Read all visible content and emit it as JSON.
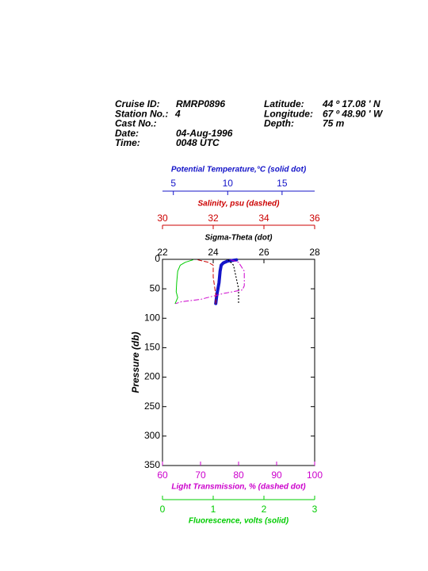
{
  "header": {
    "left": [
      {
        "label": "Cruise ID:",
        "value": "RMRP0896"
      },
      {
        "label": "Station No.:",
        "value": "4"
      },
      {
        "label": "Cast No.:"
      },
      {
        "label": "Date:",
        "value": "04-Aug-1996"
      },
      {
        "label": "Time:",
        "value": "0048 UTC"
      }
    ],
    "right": [
      {
        "label": "Latitude:",
        "value": "44 º  17.08 ' N"
      },
      {
        "label": "Longitude:",
        "value": "67 º  48.90 ' W"
      },
      {
        "label": "Depth:",
        "value": "75 m"
      }
    ]
  },
  "chart_data": {
    "type": "profile",
    "y_label": "Pressure (db)",
    "ylim": [
      0,
      350
    ],
    "yticks": [
      0,
      50,
      100,
      150,
      200,
      250,
      300,
      350
    ],
    "y_inverted": true,
    "series": [
      {
        "name": "Potential Temperature,°C (solid dot)",
        "color": "#1414c8",
        "style": "solid-dot",
        "xlim": [
          4,
          18
        ],
        "xticks": [
          5,
          10,
          15
        ],
        "y": [
          1,
          3,
          6,
          10,
          20,
          40,
          60,
          75
        ],
        "values": [
          10.8,
          10.0,
          9.6,
          9.4,
          9.3,
          9.2,
          9.0,
          8.9
        ]
      },
      {
        "name": "Salinity, psu  (dashed)",
        "color": "#cc0000",
        "style": "dashed",
        "xlim": [
          30,
          36
        ],
        "xticks": [
          30,
          32,
          34,
          36
        ],
        "y": [
          1,
          5,
          10,
          30,
          60,
          75
        ],
        "values": [
          31.4,
          31.8,
          32.0,
          32.0,
          32.1,
          32.1
        ]
      },
      {
        "name": "Sigma-Theta (dot)",
        "color": "#000000",
        "style": "dot",
        "xlim": [
          22,
          28
        ],
        "xticks": [
          22,
          24,
          26,
          28
        ],
        "y": [
          1,
          10,
          30,
          50,
          75
        ],
        "values": [
          24.6,
          24.8,
          24.9,
          25.0,
          25.0
        ]
      },
      {
        "name": "Light Transmission, % (dashed dot)",
        "color": "#cc00cc",
        "style": "dash-dot",
        "xlim": [
          60,
          100
        ],
        "xticks": [
          60,
          70,
          80,
          90,
          100
        ],
        "y": [
          1,
          5,
          20,
          45,
          52,
          58,
          68,
          72,
          75
        ],
        "values": [
          78,
          80,
          81.5,
          81.5,
          81,
          76,
          70,
          65,
          63.5
        ]
      },
      {
        "name": "Fluorescence, volts (solid)",
        "color": "#00cc00",
        "style": "solid",
        "xlim": [
          0,
          3
        ],
        "xticks": [
          0,
          1,
          2,
          3
        ],
        "y": [
          1,
          5,
          10,
          20,
          40,
          55,
          65,
          75
        ],
        "values": [
          0.6,
          0.45,
          0.35,
          0.3,
          0.28,
          0.27,
          0.3,
          0.25
        ]
      }
    ]
  }
}
